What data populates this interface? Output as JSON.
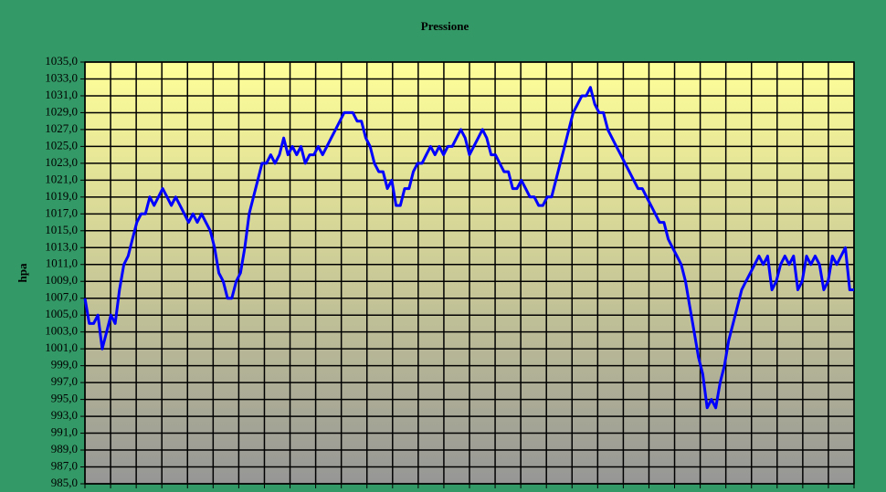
{
  "chart_data": {
    "type": "line",
    "title": "Pressione",
    "y_label": "hpa",
    "values": [
      1007,
      1004,
      1004,
      1005,
      1001,
      1003,
      1005,
      1004,
      1008,
      1011,
      1012,
      1014,
      1016,
      1017,
      1017,
      1019,
      1018,
      1019,
      1020,
      1019,
      1018,
      1019,
      1018,
      1017,
      1016,
      1017,
      1016,
      1017,
      1016,
      1015,
      1013,
      1010,
      1009,
      1007,
      1007,
      1009,
      1010,
      1013,
      1017,
      1019,
      1021,
      1023,
      1023,
      1024,
      1023,
      1024,
      1026,
      1024,
      1025,
      1024,
      1025,
      1023,
      1024,
      1024,
      1025,
      1024,
      1025,
      1026,
      1027,
      1028,
      1029,
      1029,
      1029,
      1028,
      1028,
      1026,
      1025,
      1023,
      1022,
      1022,
      1020,
      1021,
      1018,
      1018,
      1020,
      1020,
      1022,
      1023,
      1023,
      1024,
      1025,
      1024,
      1025,
      1024,
      1025,
      1025,
      1026,
      1027,
      1026,
      1024,
      1025,
      1026,
      1027,
      1026,
      1024,
      1024,
      1023,
      1022,
      1022,
      1020,
      1020,
      1021,
      1020,
      1019,
      1019,
      1018,
      1018,
      1019,
      1019,
      1021,
      1023,
      1025,
      1027,
      1029,
      1030,
      1031,
      1031,
      1032,
      1030,
      1029,
      1029,
      1027,
      1026,
      1025,
      1024,
      1023,
      1022,
      1021,
      1020,
      1020,
      1019,
      1018,
      1017,
      1016,
      1016,
      1014,
      1013,
      1012,
      1011,
      1009,
      1006,
      1003,
      1000,
      998,
      994,
      995,
      994,
      997,
      999,
      1002,
      1004,
      1006,
      1008,
      1009,
      1010,
      1011,
      1012,
      1011,
      1012,
      1008,
      1009,
      1011,
      1012,
      1011,
      1012,
      1008,
      1009,
      1012,
      1011,
      1012,
      1011,
      1008,
      1009,
      1012,
      1011,
      1012,
      1013,
      1008,
      1008
    ],
    "color": "#0000ff",
    "ylim": [
      985,
      1035
    ],
    "yticks": [
      {
        "value": 985,
        "label": "985,0"
      },
      {
        "value": 987,
        "label": "987,0"
      },
      {
        "value": 989,
        "label": "989,0"
      },
      {
        "value": 991,
        "label": "991,0"
      },
      {
        "value": 993,
        "label": "993,0"
      },
      {
        "value": 995,
        "label": "995,0"
      },
      {
        "value": 997,
        "label": "997,0"
      },
      {
        "value": 999,
        "label": "999,0"
      },
      {
        "value": 1001,
        "label": "1001,0"
      },
      {
        "value": 1003,
        "label": "1003,0"
      },
      {
        "value": 1005,
        "label": "1005,0"
      },
      {
        "value": 1007,
        "label": "1007,0"
      },
      {
        "value": 1009,
        "label": "1009,0"
      },
      {
        "value": 1011,
        "label": "1011,0"
      },
      {
        "value": 1013,
        "label": "1013,0"
      },
      {
        "value": 1015,
        "label": "1015,0"
      },
      {
        "value": 1017,
        "label": "1017,0"
      },
      {
        "value": 1019,
        "label": "1019,0"
      },
      {
        "value": 1021,
        "label": "1021,0"
      },
      {
        "value": 1023,
        "label": "1023,0"
      },
      {
        "value": 1025,
        "label": "1025,0"
      },
      {
        "value": 1027,
        "label": "1027,0"
      },
      {
        "value": 1029,
        "label": "1029,0"
      },
      {
        "value": 1031,
        "label": "1031,0"
      },
      {
        "value": 1033,
        "label": "1033,0"
      },
      {
        "value": 1035,
        "label": "1035,0"
      }
    ],
    "grid": true
  }
}
